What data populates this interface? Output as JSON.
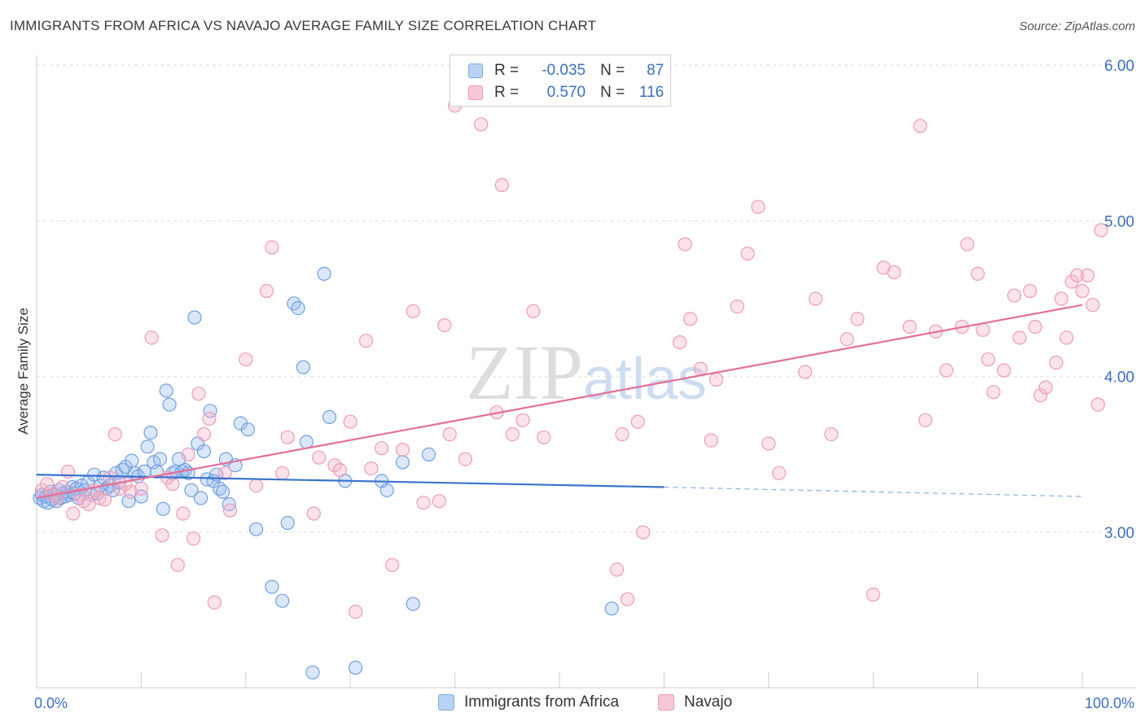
{
  "title": "IMMIGRANTS FROM AFRICA VS NAVAJO AVERAGE FAMILY SIZE CORRELATION CHART",
  "source": "Source: ZipAtlas.com",
  "watermark": "ZIPatlas",
  "legend": {
    "r_label": "R =",
    "n_label": "N =",
    "rows": [
      {
        "r": "-0.035",
        "n": "87",
        "color": "#6fa0e6"
      },
      {
        "r": "0.570",
        "n": "116",
        "color": "#ee8fad"
      }
    ]
  },
  "bottom_legend": [
    "Immigrants from Africa",
    "Navajo"
  ],
  "chart_data": {
    "type": "scatter",
    "title": "IMMIGRANTS FROM AFRICA VS NAVAJO AVERAGE FAMILY SIZE CORRELATION CHART",
    "xlabel": "",
    "ylabel": "Average Family Size",
    "xlim": [
      0,
      100
    ],
    "ylim": [
      2.05,
      6.1
    ],
    "x_tick_labels": [
      "0.0%",
      "100.0%"
    ],
    "y_ticks": [
      3.0,
      4.0,
      5.0,
      6.0
    ],
    "y_tick_labels": [
      "3.00",
      "4.00",
      "5.00",
      "6.00"
    ],
    "grid": "horizontal dashed",
    "legend_position": "top-center",
    "series": [
      {
        "name": "Immigrants from Africa",
        "color": "#6fa0e6",
        "trend": {
          "x": [
            0,
            60
          ],
          "y": [
            3.37,
            3.29
          ],
          "dashed_extension": {
            "x": [
              60,
              100
            ],
            "y": [
              3.29,
              3.23
            ]
          }
        },
        "points": [
          [
            0.3,
            3.22
          ],
          [
            0.5,
            3.24
          ],
          [
            0.7,
            3.2
          ],
          [
            0.9,
            3.23
          ],
          [
            1.1,
            3.19
          ],
          [
            1.3,
            3.26
          ],
          [
            1.5,
            3.21
          ],
          [
            1.7,
            3.24
          ],
          [
            1.9,
            3.2
          ],
          [
            2.1,
            3.27
          ],
          [
            2.3,
            3.22
          ],
          [
            2.5,
            3.25
          ],
          [
            2.7,
            3.23
          ],
          [
            2.9,
            3.26
          ],
          [
            3.1,
            3.24
          ],
          [
            3.4,
            3.29
          ],
          [
            3.6,
            3.25
          ],
          [
            3.8,
            3.28
          ],
          [
            4.0,
            3.22
          ],
          [
            4.3,
            3.3
          ],
          [
            4.6,
            3.27
          ],
          [
            4.9,
            3.32
          ],
          [
            5.2,
            3.24
          ],
          [
            5.5,
            3.37
          ],
          [
            5.8,
            3.25
          ],
          [
            6.1,
            3.3
          ],
          [
            6.4,
            3.35
          ],
          [
            6.7,
            3.28
          ],
          [
            7.0,
            3.3
          ],
          [
            7.3,
            3.27
          ],
          [
            7.6,
            3.38
          ],
          [
            7.9,
            3.32
          ],
          [
            8.2,
            3.4
          ],
          [
            8.5,
            3.42
          ],
          [
            8.8,
            3.2
          ],
          [
            9.1,
            3.46
          ],
          [
            9.4,
            3.38
          ],
          [
            9.7,
            3.36
          ],
          [
            10.0,
            3.23
          ],
          [
            10.3,
            3.39
          ],
          [
            10.6,
            3.55
          ],
          [
            10.9,
            3.64
          ],
          [
            11.2,
            3.45
          ],
          [
            11.5,
            3.39
          ],
          [
            11.8,
            3.47
          ],
          [
            12.1,
            3.15
          ],
          [
            12.4,
            3.91
          ],
          [
            12.7,
            3.82
          ],
          [
            13.0,
            3.38
          ],
          [
            13.3,
            3.39
          ],
          [
            13.6,
            3.47
          ],
          [
            13.9,
            3.39
          ],
          [
            14.2,
            3.4
          ],
          [
            14.5,
            3.38
          ],
          [
            14.8,
            3.27
          ],
          [
            15.1,
            4.38
          ],
          [
            15.4,
            3.57
          ],
          [
            15.7,
            3.22
          ],
          [
            16.0,
            3.52
          ],
          [
            16.3,
            3.34
          ],
          [
            16.6,
            3.78
          ],
          [
            16.9,
            3.33
          ],
          [
            17.2,
            3.37
          ],
          [
            17.5,
            3.28
          ],
          [
            17.8,
            3.26
          ],
          [
            18.1,
            3.47
          ],
          [
            18.4,
            3.18
          ],
          [
            19.0,
            3.43
          ],
          [
            19.5,
            3.7
          ],
          [
            20.2,
            3.66
          ],
          [
            21.0,
            3.02
          ],
          [
            22.5,
            2.65
          ],
          [
            23.5,
            2.56
          ],
          [
            24.0,
            3.06
          ],
          [
            24.6,
            4.47
          ],
          [
            25.0,
            4.44
          ],
          [
            25.5,
            4.06
          ],
          [
            25.8,
            3.58
          ],
          [
            26.4,
            2.1
          ],
          [
            27.5,
            4.66
          ],
          [
            28.0,
            3.74
          ],
          [
            29.5,
            3.33
          ],
          [
            30.5,
            2.13
          ],
          [
            33.0,
            3.33
          ],
          [
            33.5,
            3.27
          ],
          [
            35.0,
            3.45
          ],
          [
            36.0,
            2.54
          ],
          [
            37.5,
            3.5
          ],
          [
            55.0,
            2.51
          ]
        ]
      },
      {
        "name": "Navajo",
        "color": "#ee8fad",
        "trend": {
          "x": [
            0,
            100
          ],
          "y": [
            3.22,
            4.46
          ]
        },
        "points": [
          [
            0.5,
            3.27
          ],
          [
            1.0,
            3.31
          ],
          [
            1.5,
            3.24
          ],
          [
            2.0,
            3.22
          ],
          [
            2.5,
            3.29
          ],
          [
            3.0,
            3.39
          ],
          [
            3.5,
            3.12
          ],
          [
            4.0,
            3.24
          ],
          [
            4.5,
            3.2
          ],
          [
            5.0,
            3.18
          ],
          [
            5.5,
            3.27
          ],
          [
            6.0,
            3.22
          ],
          [
            6.5,
            3.21
          ],
          [
            7.0,
            3.35
          ],
          [
            7.5,
            3.63
          ],
          [
            8.0,
            3.28
          ],
          [
            8.5,
            3.31
          ],
          [
            9.0,
            3.26
          ],
          [
            10.0,
            3.28
          ],
          [
            11.0,
            4.25
          ],
          [
            12.0,
            2.98
          ],
          [
            12.5,
            3.35
          ],
          [
            13.0,
            3.31
          ],
          [
            13.5,
            2.79
          ],
          [
            14.0,
            3.12
          ],
          [
            14.5,
            3.5
          ],
          [
            15.0,
            2.96
          ],
          [
            15.5,
            3.89
          ],
          [
            16.0,
            3.63
          ],
          [
            16.5,
            3.73
          ],
          [
            17.0,
            2.55
          ],
          [
            18.0,
            3.38
          ],
          [
            18.5,
            3.14
          ],
          [
            20.0,
            4.11
          ],
          [
            21.0,
            3.3
          ],
          [
            22.0,
            4.55
          ],
          [
            22.5,
            4.83
          ],
          [
            23.5,
            3.38
          ],
          [
            24.0,
            3.61
          ],
          [
            26.5,
            3.12
          ],
          [
            27.0,
            3.48
          ],
          [
            28.5,
            3.43
          ],
          [
            29.0,
            3.4
          ],
          [
            30.0,
            3.71
          ],
          [
            30.5,
            2.49
          ],
          [
            31.5,
            4.23
          ],
          [
            32.0,
            3.41
          ],
          [
            33.0,
            3.54
          ],
          [
            34.0,
            2.79
          ],
          [
            35.0,
            3.53
          ],
          [
            36.0,
            4.42
          ],
          [
            37.0,
            3.19
          ],
          [
            38.5,
            3.2
          ],
          [
            39.0,
            4.33
          ],
          [
            39.5,
            3.63
          ],
          [
            40.0,
            5.74
          ],
          [
            41.0,
            3.47
          ],
          [
            42.5,
            5.62
          ],
          [
            44.0,
            3.77
          ],
          [
            44.5,
            5.23
          ],
          [
            45.5,
            3.63
          ],
          [
            46.5,
            3.72
          ],
          [
            47.5,
            4.42
          ],
          [
            48.5,
            3.61
          ],
          [
            55.5,
            2.76
          ],
          [
            56.0,
            3.63
          ],
          [
            56.5,
            2.57
          ],
          [
            57.5,
            3.71
          ],
          [
            58.0,
            3.0
          ],
          [
            61.5,
            4.22
          ],
          [
            62.0,
            4.85
          ],
          [
            62.5,
            4.37
          ],
          [
            63.5,
            4.05
          ],
          [
            64.5,
            3.59
          ],
          [
            65.0,
            3.98
          ],
          [
            67.0,
            4.45
          ],
          [
            68.0,
            4.79
          ],
          [
            69.0,
            5.09
          ],
          [
            70.0,
            3.57
          ],
          [
            71.0,
            3.38
          ],
          [
            73.5,
            4.03
          ],
          [
            74.5,
            4.5
          ],
          [
            76.0,
            3.63
          ],
          [
            77.5,
            4.24
          ],
          [
            78.5,
            4.37
          ],
          [
            80.0,
            2.6
          ],
          [
            81.0,
            4.7
          ],
          [
            82.0,
            4.67
          ],
          [
            83.5,
            4.32
          ],
          [
            84.5,
            5.61
          ],
          [
            85.0,
            3.72
          ],
          [
            86.0,
            4.29
          ],
          [
            87.0,
            4.04
          ],
          [
            88.5,
            4.32
          ],
          [
            89.0,
            4.85
          ],
          [
            90.0,
            4.66
          ],
          [
            90.5,
            4.3
          ],
          [
            91.0,
            4.11
          ],
          [
            91.5,
            3.9
          ],
          [
            92.5,
            4.04
          ],
          [
            93.5,
            4.52
          ],
          [
            94.0,
            4.25
          ],
          [
            95.0,
            4.55
          ],
          [
            95.5,
            4.32
          ],
          [
            96.0,
            3.88
          ],
          [
            96.5,
            3.93
          ],
          [
            97.5,
            4.09
          ],
          [
            98.0,
            4.5
          ],
          [
            98.5,
            4.25
          ],
          [
            99.0,
            4.61
          ],
          [
            99.5,
            4.65
          ],
          [
            100.0,
            4.55
          ],
          [
            100.5,
            4.65
          ],
          [
            101.0,
            4.46
          ],
          [
            101.5,
            3.82
          ],
          [
            101.8,
            4.94
          ]
        ]
      }
    ]
  }
}
